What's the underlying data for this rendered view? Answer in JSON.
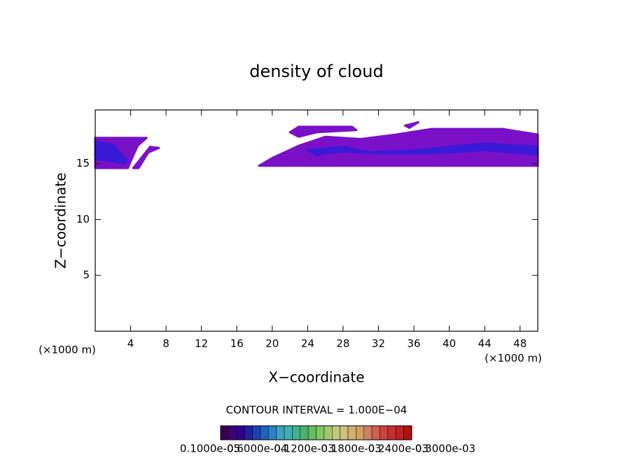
{
  "chart_data": {
    "type": "contour",
    "title": "density of cloud",
    "xlabel": "X−coordinate",
    "ylabel": "Z−coordinate",
    "x_unit_left": "(×1000 m)",
    "x_unit_right": "(×1000 m)",
    "note": "CONTOUR INTERVAL = 1.000E−04",
    "xlim": [
      0,
      50
    ],
    "ylim": [
      0,
      19.8
    ],
    "xticks": [
      4,
      8,
      12,
      16,
      20,
      24,
      28,
      32,
      36,
      40,
      44,
      48
    ],
    "yticks": [
      5,
      10,
      15
    ],
    "regions": [
      {
        "color": "#7a10c8",
        "x": [
          0,
          5.8,
          4.8,
          4,
          3.7,
          0
        ],
        "z": [
          17.3,
          17.3,
          16.6,
          15.2,
          14.6,
          14.6
        ]
      },
      {
        "color": "#7a10c8",
        "x": [
          4.3,
          4.9,
          6,
          7.2,
          6.2,
          5
        ],
        "z": [
          14.6,
          14.6,
          16,
          16.4,
          16.5,
          15.3
        ]
      },
      {
        "color": "#7a10c8",
        "x": [
          18.5,
          30,
          50,
          50,
          46,
          38,
          34,
          30,
          26,
          23,
          20
        ],
        "z": [
          14.8,
          14.8,
          14.8,
          17.6,
          18.1,
          18.1,
          17.6,
          17.2,
          17.4,
          16.6,
          15.5
        ]
      },
      {
        "color": "#7a10c8",
        "x": [
          22,
          23,
          29,
          29.5,
          25,
          23
        ],
        "z": [
          17.8,
          18.3,
          18.3,
          18,
          17.8,
          17.4
        ]
      },
      {
        "color": "#7a10c8",
        "x": [
          35,
          36.5,
          35.5
        ],
        "z": [
          18.4,
          18.7,
          18.2
        ]
      },
      {
        "color": "#3a1ad8",
        "x": [
          0,
          2,
          3.5,
          3.4,
          2,
          0
        ],
        "z": [
          17,
          16.7,
          15.4,
          15,
          15.2,
          15.4
        ]
      },
      {
        "color": "#3a1ad8",
        "x": [
          24,
          28,
          31,
          36,
          40,
          44,
          50,
          50,
          44,
          38,
          32,
          28,
          25
        ],
        "z": [
          16.2,
          16.5,
          16,
          16.2,
          16.5,
          16.8,
          16.5,
          15.8,
          16.2,
          15.9,
          15.9,
          16.1,
          15.8
        ]
      }
    ],
    "colorbar": {
      "colors": [
        "#3a0050",
        "#400070",
        "#300090",
        "#2020a0",
        "#2040b0",
        "#2060c0",
        "#3080c8",
        "#40a0c8",
        "#40b0b0",
        "#40b090",
        "#50b070",
        "#60c060",
        "#80c860",
        "#a0c870",
        "#c0c880",
        "#d0c080",
        "#d0b070",
        "#d0a060",
        "#d08060",
        "#d06050",
        "#d04040",
        "#c03030",
        "#c02020",
        "#b01010"
      ],
      "labels": [
        "0.1000e-05",
        "0.6000e-04",
        "0.1200e-03",
        "0.1800e-03",
        "0.2400e-03",
        "0.3000e-03"
      ]
    }
  }
}
